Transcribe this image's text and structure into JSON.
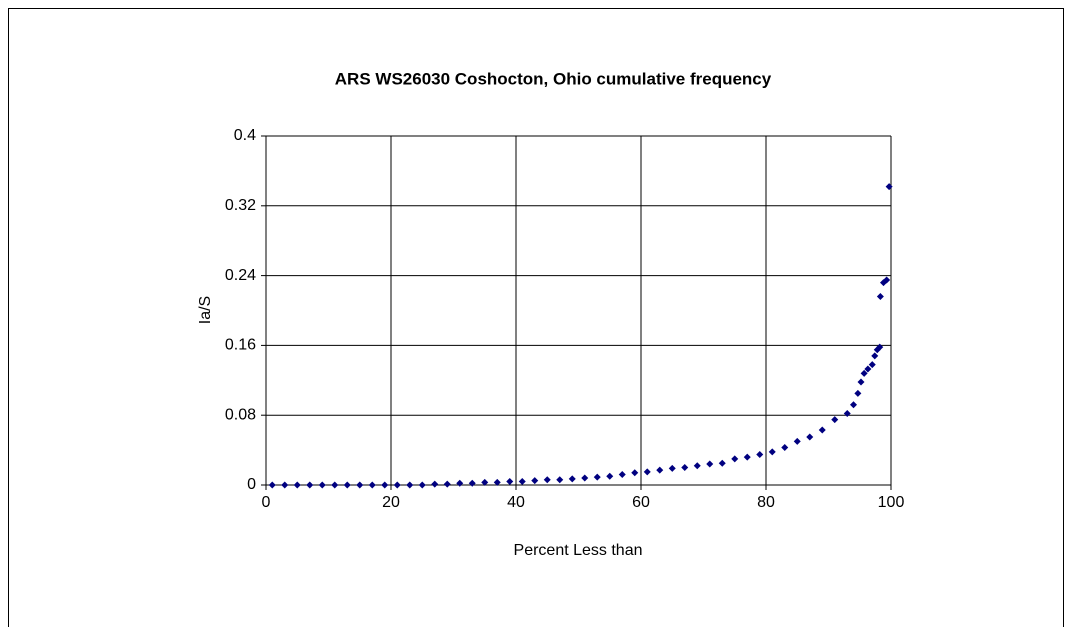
{
  "chart_data": {
    "type": "scatter",
    "title": "ARS WS26030 Coshocton, Ohio cumulative frequency",
    "x_label": "Percent Less than",
    "y_label": "Ia/S",
    "series": [
      {
        "name": "Ia/S",
        "color": "#000080",
        "x": [
          1,
          3,
          5,
          7,
          9,
          11,
          13,
          15,
          17,
          19,
          21,
          23,
          25,
          27,
          29,
          31,
          33,
          35,
          37,
          39,
          41,
          43,
          45,
          47,
          49,
          51,
          53,
          55,
          57,
          59,
          61,
          63,
          65,
          67,
          69,
          71,
          73,
          75,
          77,
          79,
          81,
          83,
          85,
          87,
          89,
          91,
          93,
          94,
          94.7,
          95.2,
          95.7,
          96.3,
          97,
          97.4,
          97.8,
          98.2,
          98.3,
          98.8,
          99.3,
          99.7
        ],
        "values": [
          0,
          0,
          0,
          0,
          0,
          0,
          0,
          0,
          0,
          0,
          0,
          0,
          0,
          0.001,
          0.001,
          0.002,
          0.002,
          0.003,
          0.003,
          0.004,
          0.004,
          0.005,
          0.006,
          0.006,
          0.007,
          0.008,
          0.009,
          0.01,
          0.012,
          0.014,
          0.015,
          0.017,
          0.019,
          0.02,
          0.022,
          0.024,
          0.025,
          0.03,
          0.032,
          0.035,
          0.038,
          0.043,
          0.05,
          0.055,
          0.063,
          0.075,
          0.082,
          0.092,
          0.105,
          0.118,
          0.128,
          0.133,
          0.138,
          0.148,
          0.155,
          0.158,
          0.216,
          0.232,
          0.235,
          0.342
        ]
      }
    ],
    "xlim": [
      0,
      100
    ],
    "xticks": [
      0,
      20,
      40,
      60,
      80,
      100
    ],
    "ylim": [
      0,
      0.4
    ],
    "yticks": [
      0,
      0.08,
      0.16,
      0.24,
      0.32,
      0.4
    ],
    "grid": true
  }
}
